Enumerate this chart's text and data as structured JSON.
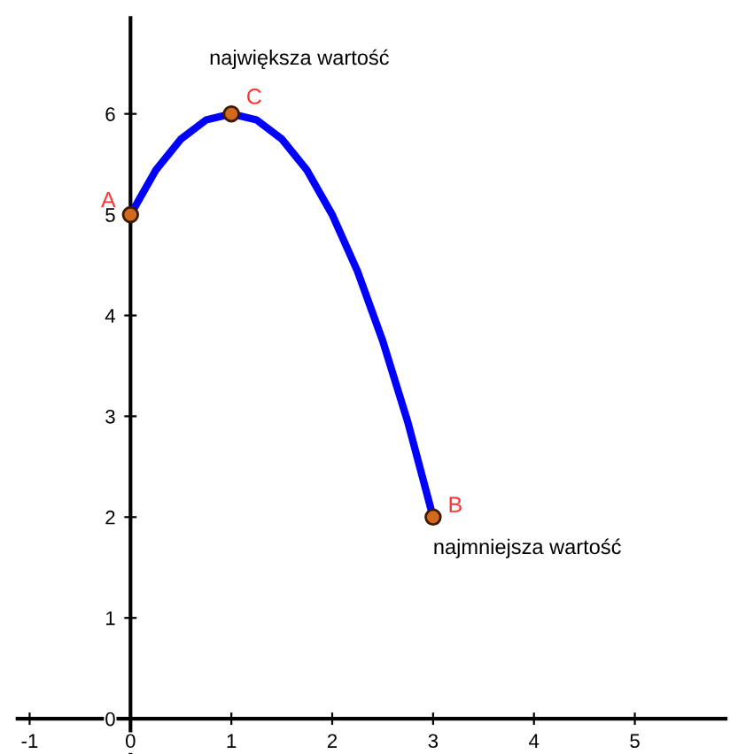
{
  "chart_data": {
    "type": "line",
    "xlim": [
      -1.12,
      5.9
    ],
    "ylim": [
      -0.35,
      6.95
    ],
    "xticks": [
      -1,
      0,
      1,
      2,
      3,
      4,
      5
    ],
    "yticks": [
      0,
      1,
      2,
      3,
      4,
      5,
      6
    ],
    "grid": false,
    "legend": false,
    "series": [
      {
        "type": "line",
        "color": "#0000ff",
        "marker": "none",
        "x": [
          0,
          0.25,
          0.5,
          0.75,
          1,
          1.25,
          1.5,
          1.75,
          2,
          2.25,
          2.5,
          2.75,
          3
        ],
        "values": [
          5,
          5.44,
          5.75,
          5.94,
          6,
          5.94,
          5.75,
          5.44,
          5,
          4.44,
          3.75,
          2.94,
          2
        ]
      },
      {
        "type": "scatter",
        "color": "#d2691e",
        "marker": "circle",
        "x": [
          0,
          1,
          3
        ],
        "values": [
          5,
          6,
          2
        ]
      }
    ],
    "annotations": [
      {
        "text": "A",
        "x": 0,
        "y": 5
      },
      {
        "text": "C",
        "x": 1,
        "y": 6
      },
      {
        "text": "B",
        "x": 3,
        "y": 2
      },
      {
        "text": "największa wartość",
        "x": 1,
        "y": 6
      },
      {
        "text": "najmniejsza wartość",
        "x": 3,
        "y": 2
      }
    ]
  }
}
